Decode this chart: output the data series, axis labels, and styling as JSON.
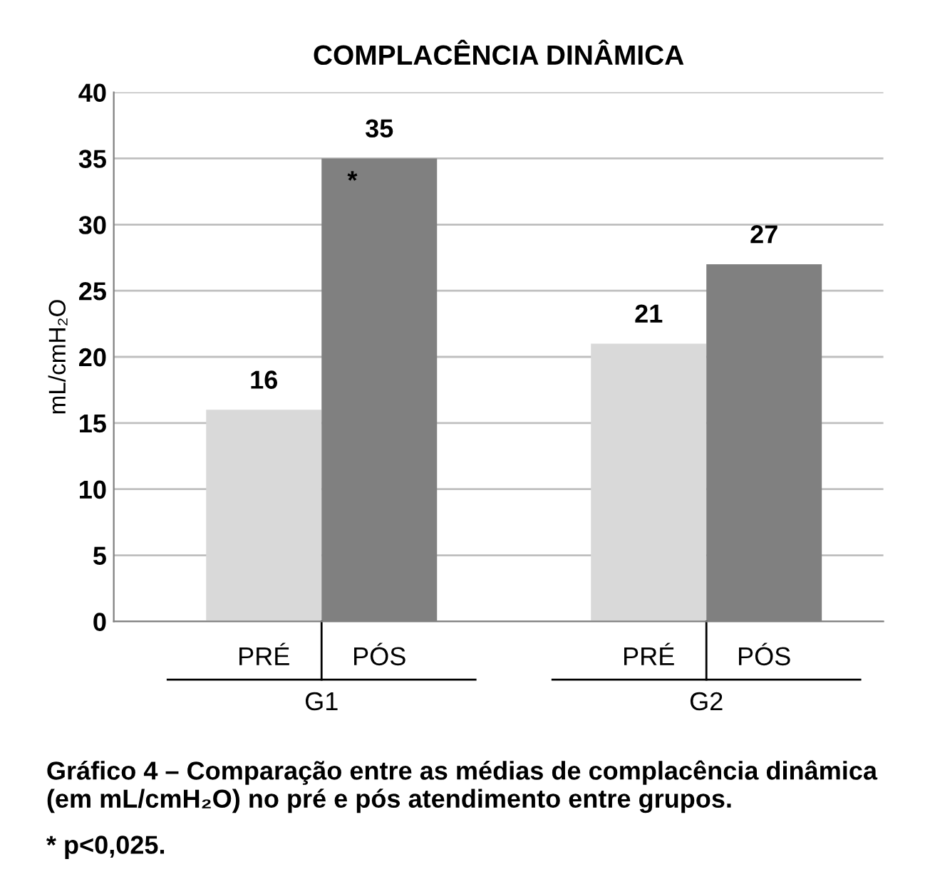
{
  "chart_data": {
    "type": "bar",
    "title": "COMPLACÊNCIA DINÂMICA",
    "ylabel": "mL/cmH₂O",
    "categories": [
      "G1",
      "G2"
    ],
    "series": [
      {
        "name": "PRÉ",
        "color": "#d9d9d9",
        "values": [
          16,
          21
        ]
      },
      {
        "name": "PÓS",
        "color": "#808080",
        "values": [
          35,
          27
        ]
      }
    ],
    "ylim": [
      0,
      40
    ],
    "yticks": [
      0,
      5,
      10,
      15,
      20,
      25,
      30,
      35,
      40
    ],
    "grid": "y",
    "data_labels": true,
    "annotations": [
      "*",
      "Gráfico 4 – Comparação entre as médias de complacência dinâmica (em mL/cmH₂O) no pré e pós atendimento entre grupos.",
      "* p<0,025."
    ]
  }
}
